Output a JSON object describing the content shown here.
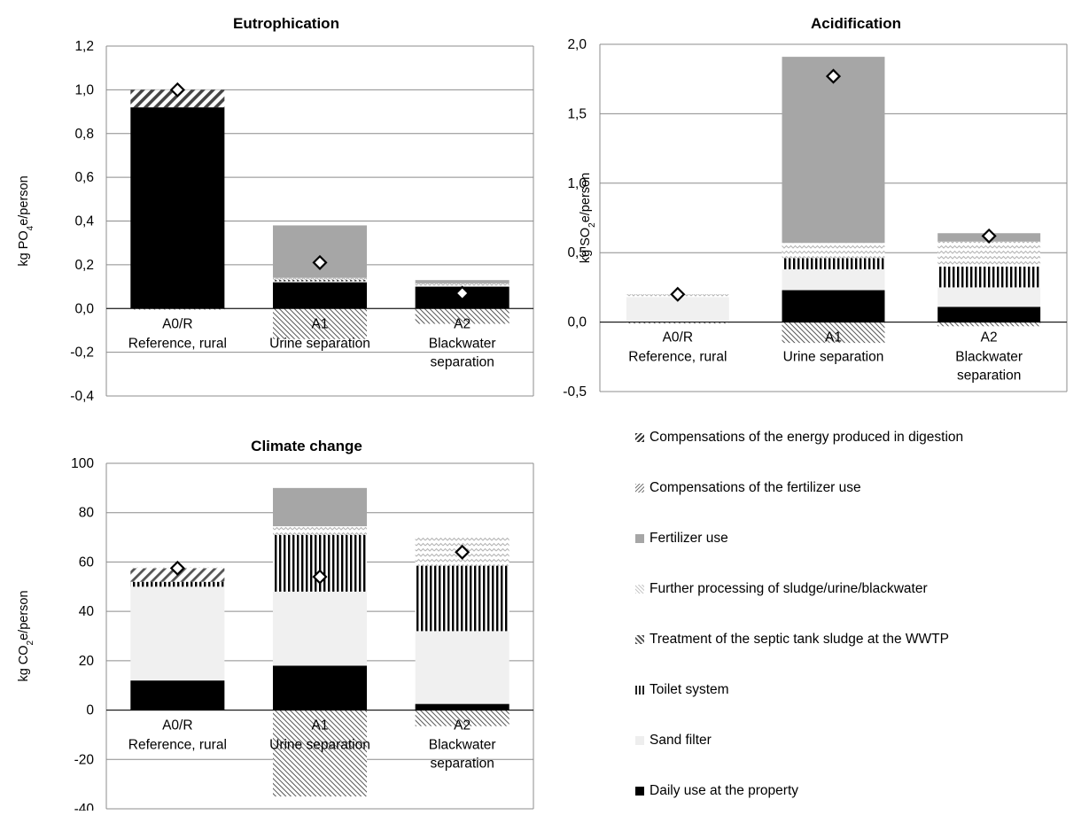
{
  "chart_data": [
    {
      "type": "bar",
      "stacked": true,
      "title": "Eutrophication",
      "ylabel": "kg PO4e/person",
      "ylabel_parts": [
        "kg PO",
        "4",
        "e/person"
      ],
      "ylim": [
        -0.4,
        1.2
      ],
      "yticks": [
        -0.4,
        -0.2,
        0.0,
        0.2,
        0.4,
        0.6,
        0.8,
        1.0,
        1.2
      ],
      "ytick_labels": [
        "-0,4",
        "-0,2",
        "0,0",
        "0,2",
        "0,4",
        "0,6",
        "0,8",
        "1,0",
        "1,2"
      ],
      "grid": true,
      "categories": [
        {
          "code": "A0/R",
          "label": [
            "Reference, rural"
          ]
        },
        {
          "code": "A1",
          "label": [
            "Urine separation"
          ]
        },
        {
          "code": "A2",
          "label": [
            "Blackwater",
            "separation"
          ]
        }
      ],
      "series": [
        {
          "name": "Daily use at the property",
          "values": [
            0.92,
            0.12,
            0.1
          ]
        },
        {
          "name": "Sand filter",
          "values": [
            0.0,
            0.005,
            0.005
          ]
        },
        {
          "name": "Toilet system",
          "values": [
            0.0,
            0.005,
            0.0
          ]
        },
        {
          "name": "Treatment of the septic tank sludge at the WWTP",
          "values": [
            0.0,
            0.0,
            0.0
          ]
        },
        {
          "name": "Further processing of sludge/urine/blackwater",
          "values": [
            0.0,
            0.01,
            0.01
          ]
        },
        {
          "name": "Fertilizer use",
          "values": [
            0.0,
            0.24,
            0.015
          ]
        },
        {
          "name": "Compensations of the fertilizer use",
          "values": [
            -0.005,
            -0.14,
            -0.07
          ]
        },
        {
          "name": "Compensations of the energy produced in digestion",
          "values": [
            0.08,
            0.0,
            0.0
          ]
        }
      ],
      "net_total": [
        1.0,
        0.21,
        0.07
      ]
    },
    {
      "type": "bar",
      "stacked": true,
      "title": "Acidification",
      "ylabel": "kg SO2e/person",
      "ylabel_parts": [
        "kg SO",
        "2",
        "e/person"
      ],
      "ylim": [
        -0.5,
        2.0
      ],
      "yticks": [
        -0.5,
        0.0,
        0.5,
        1.0,
        1.5,
        2.0
      ],
      "ytick_labels": [
        "-0,5",
        "0,0",
        "0,5",
        "1,0",
        "1,5",
        "2,0"
      ],
      "grid": true,
      "categories": [
        {
          "code": "A0/R",
          "label": [
            "Reference, rural"
          ]
        },
        {
          "code": "A1",
          "label": [
            "Urine separation"
          ]
        },
        {
          "code": "A2",
          "label": [
            "Blackwater",
            "separation"
          ]
        }
      ],
      "series": [
        {
          "name": "Daily use at the property",
          "values": [
            0.0,
            0.23,
            0.11
          ]
        },
        {
          "name": "Sand filter",
          "values": [
            0.18,
            0.15,
            0.14
          ]
        },
        {
          "name": "Toilet system",
          "values": [
            0.0,
            0.08,
            0.15
          ]
        },
        {
          "name": "Treatment of the septic tank sludge at the WWTP",
          "values": [
            0.0,
            0.0,
            0.0
          ]
        },
        {
          "name": "Further processing of sludge/urine/blackwater",
          "values": [
            0.02,
            0.11,
            0.18
          ]
        },
        {
          "name": "Fertilizer use",
          "values": [
            0.0,
            1.34,
            0.06
          ]
        },
        {
          "name": "Compensations of the fertilizer use",
          "values": [
            -0.01,
            -0.15,
            -0.03
          ]
        },
        {
          "name": "Compensations of the energy produced in digestion",
          "values": [
            0.0,
            0.0,
            0.0
          ]
        }
      ],
      "net_total": [
        0.2,
        1.77,
        0.62
      ]
    },
    {
      "type": "bar",
      "stacked": true,
      "title": "Climate change",
      "ylabel": "kg CO2e/person",
      "ylabel_parts": [
        "kg CO",
        "2",
        "e/person"
      ],
      "ylim": [
        -40,
        100
      ],
      "yticks": [
        -40,
        -20,
        0,
        20,
        40,
        60,
        80,
        100
      ],
      "ytick_labels": [
        "-40",
        "-20",
        "0",
        "20",
        "40",
        "60",
        "80",
        "100"
      ],
      "grid": true,
      "categories": [
        {
          "code": "A0/R",
          "label": [
            "Reference, rural"
          ]
        },
        {
          "code": "A1",
          "label": [
            "Urine separation"
          ]
        },
        {
          "code": "A2",
          "label": [
            "Blackwater",
            "separation"
          ]
        }
      ],
      "series": [
        {
          "name": "Daily use at the property",
          "values": [
            12,
            18,
            2.5
          ]
        },
        {
          "name": "Sand filter",
          "values": [
            38,
            30,
            29.5
          ]
        },
        {
          "name": "Toilet system",
          "values": [
            2,
            23,
            26.5
          ]
        },
        {
          "name": "Treatment of the septic tank sludge at the WWTP",
          "values": [
            5.5,
            0,
            0
          ]
        },
        {
          "name": "Further processing of sludge/urine/blackwater",
          "values": [
            0.5,
            3.5,
            12
          ]
        },
        {
          "name": "Fertilizer use",
          "values": [
            0,
            15.5,
            0
          ]
        },
        {
          "name": "Compensations of the fertilizer use",
          "values": [
            0,
            -35,
            -6.5
          ]
        },
        {
          "name": "Compensations of the energy produced in digestion",
          "values": [
            0,
            0,
            0
          ]
        }
      ],
      "net_total": [
        57.5,
        54,
        64
      ]
    }
  ],
  "legend": {
    "placement": "bottom-right",
    "items": [
      {
        "label": "Compensations of the energy produced in digestion",
        "pattern": "diag-bold"
      },
      {
        "label": "Compensations of the fertilizer use",
        "pattern": "diag-fine"
      },
      {
        "label": "Fertilizer use",
        "pattern": "solid-gray"
      },
      {
        "label": "Further processing of sludge/urine/blackwater",
        "pattern": "zigzag"
      },
      {
        "label": "Treatment of the septic tank sludge at the WWTP",
        "pattern": "diag-wide"
      },
      {
        "label": "Toilet system",
        "pattern": "vertical"
      },
      {
        "label": "Sand filter",
        "pattern": "light-gray"
      },
      {
        "label": "Daily use at the property",
        "pattern": "solid-black"
      }
    ]
  },
  "colors": {
    "daily_use": "#000000",
    "sand_filter": "#f0f0f0",
    "fertilizer_use": "#a6a6a6",
    "gridline": "#8c8c8c",
    "axis": "#000000"
  }
}
